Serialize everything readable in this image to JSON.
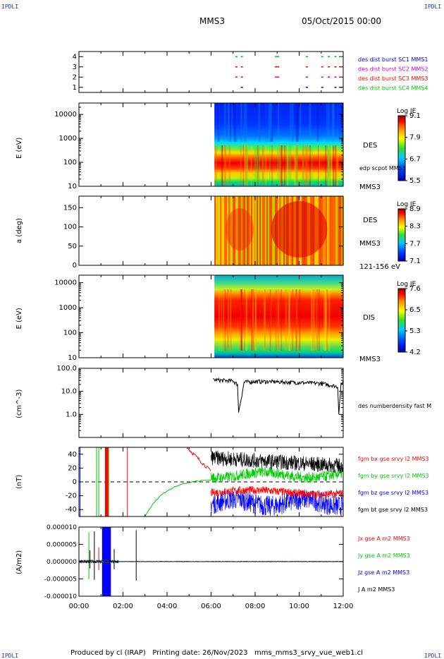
{
  "header": {
    "corner_tl": "IPDLI",
    "corner_tr": "IPDLI",
    "corner_bl": "IPDLI",
    "corner_br": "IPDLI",
    "title": "MMS3",
    "date": "05/Oct/2015 00:00"
  },
  "footer": {
    "text": "Produced by cl (IRAP)   Printing date: 26/Nov/2023   mms_mms3_srvy_vue_web1.cl"
  },
  "colors": {
    "blue": "#0000ff",
    "magenta": "#cc00cc",
    "red": "#ff0000",
    "green": "#00cc00",
    "black": "#000000"
  },
  "chart_data": [
    {
      "id": "burst",
      "type": "scatter",
      "ylim": [
        0.5,
        4.5
      ],
      "yticks": [
        "1",
        "2",
        "3",
        "4"
      ],
      "legend": [
        {
          "label": "des dist burst SC1 MMS1",
          "color": "#0000ff"
        },
        {
          "label": "des dist burst SC2 MMS2",
          "color": "#cc00cc"
        },
        {
          "label": "des dist burst SC3 MMS3",
          "color": "#ff0000"
        },
        {
          "label": "des dist burst SC4 MMS4",
          "color": "#00cc00"
        }
      ],
      "bursts_hours": [
        7.1,
        7.35,
        8.9,
        9.0,
        10.3,
        11.0,
        11.3,
        11.6,
        11.85
      ]
    },
    {
      "id": "des-energy",
      "type": "heatmap",
      "ylabel": "E (eV)",
      "ylog": true,
      "ylim": [
        10,
        30000
      ],
      "yticks": [
        "10",
        "100",
        "1000",
        "10000"
      ],
      "data_start_hour": 6.15,
      "colorbar": {
        "title": "Log JE",
        "ticks": [
          "9.1",
          "7.9",
          "6.7",
          "5.5"
        ]
      },
      "side_labels": [
        "DES",
        "edp scpot MMS3",
        "MMS3"
      ]
    },
    {
      "id": "des-pitch",
      "type": "heatmap",
      "ylabel": "a (deg)",
      "ylim": [
        0,
        180
      ],
      "yticks": [
        "0",
        "50",
        "100",
        "150"
      ],
      "data_start_hour": 6.15,
      "colorbar": {
        "title": "Log JE",
        "ticks": [
          "8.9",
          "8.3",
          "7.7",
          "7.1"
        ]
      },
      "side_labels": [
        "DES",
        "MMS3",
        "121-156 eV"
      ]
    },
    {
      "id": "dis-energy",
      "type": "heatmap",
      "ylabel": "E (eV)",
      "ylog": true,
      "ylim": [
        10,
        20000
      ],
      "yticks": [
        "10",
        "100",
        "1000",
        "10000"
      ],
      "data_start_hour": 6.15,
      "colorbar": {
        "title": "Log JE",
        "ticks": [
          "7.6",
          "6.5",
          "5.3",
          "4.2"
        ]
      },
      "side_labels": [
        "DIS",
        "MMS3"
      ]
    },
    {
      "id": "density",
      "type": "line",
      "ylabel": "(cm^-3)",
      "ylog": true,
      "ylim": [
        0.1,
        100
      ],
      "yticks": [
        "1.0",
        "10.0",
        "100.0"
      ],
      "series": [
        {
          "name": "des numberdensity fast M",
          "color": "#000000",
          "x": [
            6.1,
            6.5,
            7.0,
            7.2,
            7.25,
            7.5,
            8.0,
            9.0,
            10.0,
            11.0,
            11.5,
            11.75,
            11.8,
            11.9,
            12.0
          ],
          "y": [
            32,
            30,
            28,
            20,
            1.2,
            25,
            27,
            26,
            24,
            22,
            18,
            16,
            1.0,
            20,
            28
          ]
        }
      ]
    },
    {
      "id": "fgm",
      "type": "line",
      "ylabel": "(nT)",
      "ylim": [
        -50,
        50
      ],
      "yticks": [
        "-40",
        "-20",
        "0",
        "20",
        "40"
      ],
      "zero_line": true,
      "series": [
        {
          "name": "fgm bx gse srvy l2 MMS3",
          "color": "#ff0000"
        },
        {
          "name": "fgm by gse srvy l2 MMS3",
          "color": "#00cc00"
        },
        {
          "name": "fgm bz gse srvy l2 MMS3",
          "color": "#0000ff"
        },
        {
          "name": "fgm bt gse srvy l2 MMS3",
          "color": "#000000"
        }
      ]
    },
    {
      "id": "current",
      "type": "line",
      "ylabel": "(A/m2)",
      "ylim": [
        -0.0001,
        0.0001
      ],
      "yticks": [
        "-0.000010",
        "-0.000005",
        "0.000000",
        "0.000005",
        "0.000010"
      ],
      "xticks": [
        "00:00",
        "02:00",
        "04:00",
        "06:00",
        "08:00",
        "10:00",
        "12:00"
      ],
      "series": [
        {
          "name": "Jx gse A m2 MMS3",
          "color": "#ff0000"
        },
        {
          "name": "Jy gse A m2 MMS3",
          "color": "#00cc00"
        },
        {
          "name": "Jz gse A m2 MMS3",
          "color": "#0000ff"
        },
        {
          "name": "J A m2 MMS3",
          "color": "#000000"
        }
      ]
    }
  ]
}
